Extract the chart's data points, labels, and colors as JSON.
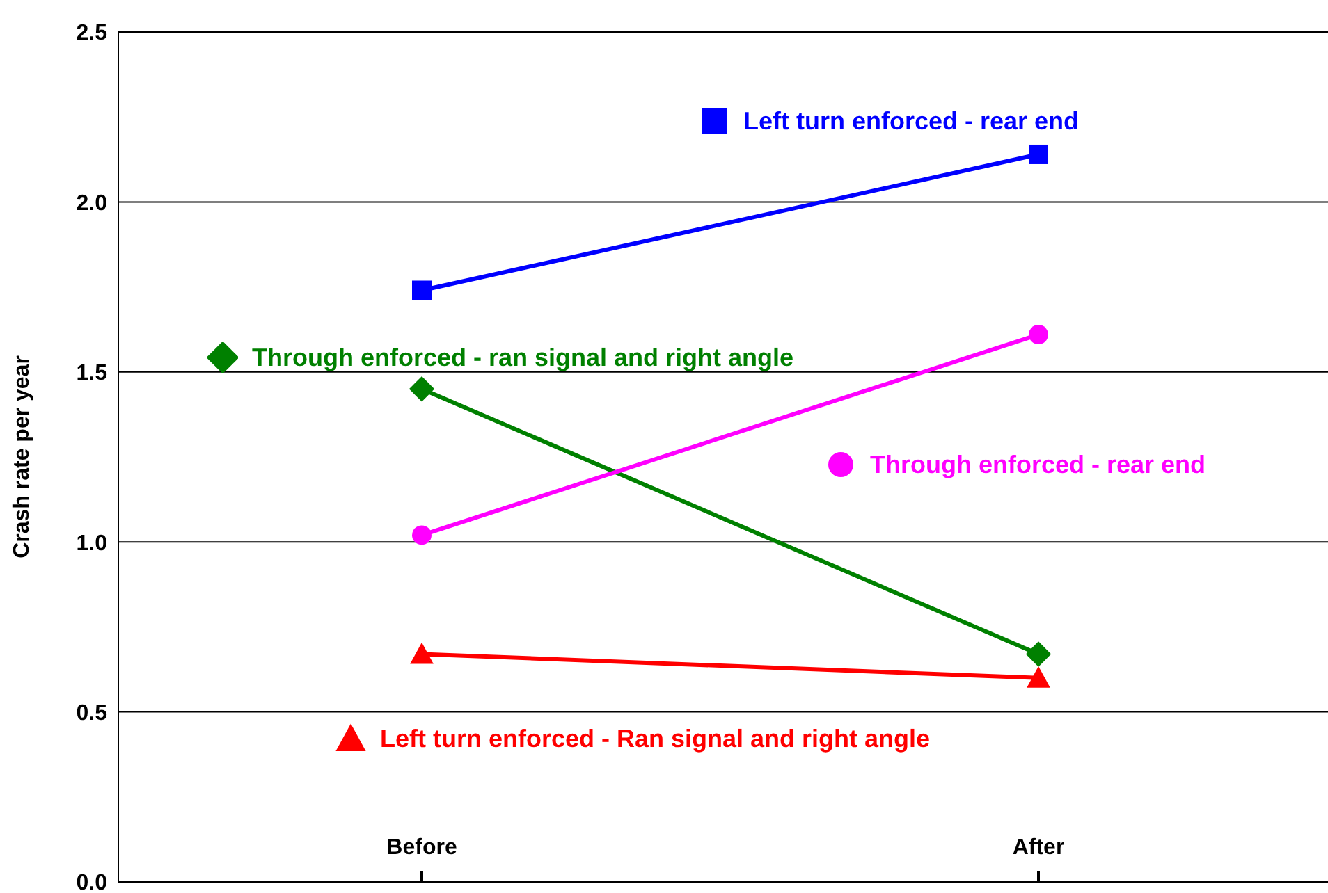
{
  "chart_data": {
    "type": "line",
    "ylabel": "Crash rate per year",
    "categories": [
      "Before",
      "After"
    ],
    "series": [
      {
        "name": "Left turn enforced - rear end",
        "color": "#0000ff",
        "marker": "square",
        "values": [
          1.74,
          2.14
        ]
      },
      {
        "name": "Through enforced - ran signal and right angle",
        "color": "#008000",
        "marker": "diamond",
        "values": [
          1.45,
          0.67
        ]
      },
      {
        "name": "Through enforced - rear end",
        "color": "#ff00ff",
        "marker": "circle",
        "values": [
          1.02,
          1.61
        ]
      },
      {
        "name": "Left turn enforced - Ran signal and right angle",
        "color": "#ff0000",
        "marker": "triangle",
        "values": [
          0.67,
          0.6
        ]
      }
    ],
    "ylim": [
      0,
      2.5
    ],
    "yticks": [
      {
        "value": 0,
        "label": "0.0"
      },
      {
        "value": 0.5,
        "label": "0.5"
      },
      {
        "value": 1,
        "label": "1.0"
      },
      {
        "value": 1.5,
        "label": "1.5"
      },
      {
        "value": 2,
        "label": "2.0"
      },
      {
        "value": 2.5,
        "label": "2.5"
      }
    ],
    "grid": "y",
    "line_style": "solid",
    "legend": "top"
  }
}
